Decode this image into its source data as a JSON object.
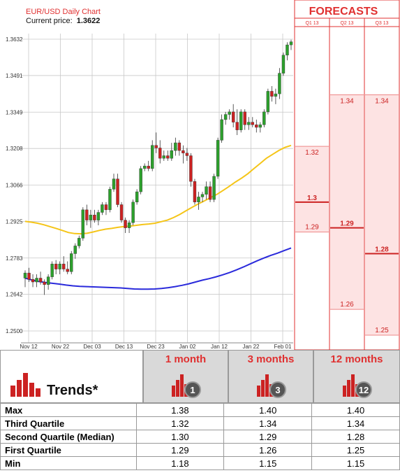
{
  "chart_title": "EUR/USD Daily Chart",
  "current_price_label": "Current price:",
  "current_price": "1.3622",
  "forecasts_title": "FORECASTS",
  "colors": {
    "candle_up": "#2ca02c",
    "candle_down": "#cc2222",
    "ma_short": "#f5c518",
    "ma_long": "#2a2adb",
    "accent": "#e03030"
  },
  "chart_data": [
    {
      "type": "candlestick",
      "title": "EUR/USD Daily Chart",
      "y_ticks": [
        1.25,
        1.2642,
        1.2783,
        1.2925,
        1.3066,
        1.3208,
        1.3349,
        1.3491,
        1.3632
      ],
      "y_tick_labels": [
        "1.2500",
        "1.2642",
        "1.2783",
        "1.2925",
        "1.3066",
        "1.3208",
        "1.3349",
        "1.3491",
        "1.3632"
      ],
      "ylim": [
        1.25,
        1.3632
      ],
      "x_tick_labels": [
        "Nov 12",
        "Nov 22",
        "Dec 03",
        "Dec 13",
        "Dec 23",
        "Jan 02",
        "Jan 12",
        "Jan 22",
        "Feb 01"
      ],
      "grid": true,
      "candles": [
        {
          "o": 1.2705,
          "h": 1.2735,
          "l": 1.267,
          "c": 1.2725
        },
        {
          "o": 1.2725,
          "h": 1.2745,
          "l": 1.269,
          "c": 1.27
        },
        {
          "o": 1.27,
          "h": 1.272,
          "l": 1.267,
          "c": 1.269
        },
        {
          "o": 1.269,
          "h": 1.272,
          "l": 1.267,
          "c": 1.2705
        },
        {
          "o": 1.2705,
          "h": 1.273,
          "l": 1.268,
          "c": 1.269
        },
        {
          "o": 1.269,
          "h": 1.27,
          "l": 1.264,
          "c": 1.268
        },
        {
          "o": 1.268,
          "h": 1.272,
          "l": 1.266,
          "c": 1.271
        },
        {
          "o": 1.271,
          "h": 1.277,
          "l": 1.27,
          "c": 1.276
        },
        {
          "o": 1.276,
          "h": 1.2775,
          "l": 1.272,
          "c": 1.274
        },
        {
          "o": 1.274,
          "h": 1.277,
          "l": 1.272,
          "c": 1.276
        },
        {
          "o": 1.276,
          "h": 1.279,
          "l": 1.273,
          "c": 1.274
        },
        {
          "o": 1.274,
          "h": 1.277,
          "l": 1.272,
          "c": 1.273
        },
        {
          "o": 1.273,
          "h": 1.281,
          "l": 1.272,
          "c": 1.28
        },
        {
          "o": 1.28,
          "h": 1.284,
          "l": 1.278,
          "c": 1.283
        },
        {
          "o": 1.283,
          "h": 1.287,
          "l": 1.282,
          "c": 1.286
        },
        {
          "o": 1.286,
          "h": 1.298,
          "l": 1.285,
          "c": 1.297
        },
        {
          "o": 1.297,
          "h": 1.299,
          "l": 1.291,
          "c": 1.293
        },
        {
          "o": 1.293,
          "h": 1.297,
          "l": 1.29,
          "c": 1.295
        },
        {
          "o": 1.295,
          "h": 1.297,
          "l": 1.292,
          "c": 1.293
        },
        {
          "o": 1.293,
          "h": 1.297,
          "l": 1.291,
          "c": 1.296
        },
        {
          "o": 1.296,
          "h": 1.3,
          "l": 1.295,
          "c": 1.299
        },
        {
          "o": 1.299,
          "h": 1.3,
          "l": 1.295,
          "c": 1.297
        },
        {
          "o": 1.297,
          "h": 1.306,
          "l": 1.296,
          "c": 1.305
        },
        {
          "o": 1.305,
          "h": 1.311,
          "l": 1.304,
          "c": 1.309
        },
        {
          "o": 1.309,
          "h": 1.311,
          "l": 1.298,
          "c": 1.299
        },
        {
          "o": 1.299,
          "h": 1.3,
          "l": 1.292,
          "c": 1.293
        },
        {
          "o": 1.293,
          "h": 1.294,
          "l": 1.288,
          "c": 1.29
        },
        {
          "o": 1.29,
          "h": 1.293,
          "l": 1.288,
          "c": 1.292
        },
        {
          "o": 1.292,
          "h": 1.301,
          "l": 1.291,
          "c": 1.3
        },
        {
          "o": 1.3,
          "h": 1.305,
          "l": 1.299,
          "c": 1.304
        },
        {
          "o": 1.304,
          "h": 1.314,
          "l": 1.303,
          "c": 1.313
        },
        {
          "o": 1.313,
          "h": 1.315,
          "l": 1.312,
          "c": 1.314
        },
        {
          "o": 1.314,
          "h": 1.316,
          "l": 1.312,
          "c": 1.313
        },
        {
          "o": 1.313,
          "h": 1.324,
          "l": 1.312,
          "c": 1.322
        },
        {
          "o": 1.322,
          "h": 1.327,
          "l": 1.319,
          "c": 1.321
        },
        {
          "o": 1.321,
          "h": 1.324,
          "l": 1.315,
          "c": 1.317
        },
        {
          "o": 1.317,
          "h": 1.32,
          "l": 1.316,
          "c": 1.318
        },
        {
          "o": 1.318,
          "h": 1.32,
          "l": 1.316,
          "c": 1.317
        },
        {
          "o": 1.317,
          "h": 1.323,
          "l": 1.316,
          "c": 1.32
        },
        {
          "o": 1.32,
          "h": 1.325,
          "l": 1.318,
          "c": 1.323
        },
        {
          "o": 1.323,
          "h": 1.324,
          "l": 1.318,
          "c": 1.32
        },
        {
          "o": 1.32,
          "h": 1.322,
          "l": 1.315,
          "c": 1.319
        },
        {
          "o": 1.319,
          "h": 1.321,
          "l": 1.316,
          "c": 1.318
        },
        {
          "o": 1.318,
          "h": 1.319,
          "l": 1.306,
          "c": 1.308
        },
        {
          "o": 1.308,
          "h": 1.309,
          "l": 1.299,
          "c": 1.3
        },
        {
          "o": 1.3,
          "h": 1.304,
          "l": 1.297,
          "c": 1.302
        },
        {
          "o": 1.302,
          "h": 1.304,
          "l": 1.3,
          "c": 1.303
        },
        {
          "o": 1.303,
          "h": 1.308,
          "l": 1.301,
          "c": 1.306
        },
        {
          "o": 1.306,
          "h": 1.308,
          "l": 1.3,
          "c": 1.301
        },
        {
          "o": 1.301,
          "h": 1.311,
          "l": 1.3,
          "c": 1.31
        },
        {
          "o": 1.31,
          "h": 1.325,
          "l": 1.309,
          "c": 1.324
        },
        {
          "o": 1.324,
          "h": 1.334,
          "l": 1.323,
          "c": 1.332
        },
        {
          "o": 1.332,
          "h": 1.335,
          "l": 1.33,
          "c": 1.334
        },
        {
          "o": 1.334,
          "h": 1.336,
          "l": 1.332,
          "c": 1.335
        },
        {
          "o": 1.335,
          "h": 1.338,
          "l": 1.329,
          "c": 1.331
        },
        {
          "o": 1.331,
          "h": 1.336,
          "l": 1.326,
          "c": 1.328
        },
        {
          "o": 1.328,
          "h": 1.336,
          "l": 1.327,
          "c": 1.335
        },
        {
          "o": 1.335,
          "h": 1.336,
          "l": 1.328,
          "c": 1.33
        },
        {
          "o": 1.33,
          "h": 1.333,
          "l": 1.328,
          "c": 1.331
        },
        {
          "o": 1.331,
          "h": 1.333,
          "l": 1.329,
          "c": 1.33
        },
        {
          "o": 1.33,
          "h": 1.332,
          "l": 1.327,
          "c": 1.329
        },
        {
          "o": 1.329,
          "h": 1.331,
          "l": 1.327,
          "c": 1.33
        },
        {
          "o": 1.33,
          "h": 1.336,
          "l": 1.329,
          "c": 1.335
        },
        {
          "o": 1.335,
          "h": 1.344,
          "l": 1.334,
          "c": 1.343
        },
        {
          "o": 1.343,
          "h": 1.345,
          "l": 1.339,
          "c": 1.341
        },
        {
          "o": 1.341,
          "h": 1.344,
          "l": 1.338,
          "c": 1.342
        },
        {
          "o": 1.342,
          "h": 1.352,
          "l": 1.34,
          "c": 1.35
        },
        {
          "o": 1.35,
          "h": 1.358,
          "l": 1.349,
          "c": 1.357
        },
        {
          "o": 1.357,
          "h": 1.362,
          "l": 1.355,
          "c": 1.361
        },
        {
          "o": 1.361,
          "h": 1.363,
          "l": 1.359,
          "c": 1.3622
        }
      ],
      "ma_short": [
        1.2925,
        1.2922,
        1.2918,
        1.2912,
        1.2905,
        1.2898,
        1.289,
        1.2882,
        1.2878,
        1.2877,
        1.2879,
        1.2884,
        1.289,
        1.2895,
        1.2898,
        1.2902,
        1.2905,
        1.2907,
        1.291,
        1.2913,
        1.2915,
        1.2918,
        1.2924,
        1.293,
        1.294,
        1.2952,
        1.2966,
        1.298,
        1.2993,
        1.3005,
        1.3018,
        1.303,
        1.3045,
        1.3061,
        1.3078,
        1.3093,
        1.311,
        1.313,
        1.315,
        1.317,
        1.3185,
        1.32,
        1.3212,
        1.322
      ],
      "ma_long": [
        1.2705,
        1.2698,
        1.2692,
        1.2688,
        1.2685,
        1.2682,
        1.2678,
        1.2675,
        1.2673,
        1.2672,
        1.2671,
        1.267,
        1.2669,
        1.2668,
        1.2667,
        1.2665,
        1.2663,
        1.2662,
        1.2662,
        1.2663,
        1.2665,
        1.2668,
        1.2672,
        1.2677,
        1.2683,
        1.269,
        1.2697,
        1.2703,
        1.271,
        1.2718,
        1.2727,
        1.2737,
        1.2748,
        1.276,
        1.2772,
        1.2783,
        1.2793,
        1.2802,
        1.2812,
        1.2822
      ],
      "forecast_columns": [
        {
          "label": "Q1 13",
          "third_quartile": "1.32",
          "median": "1.3",
          "first_quartile": "1.29"
        },
        {
          "label": "Q2 13",
          "third_quartile": "1.34",
          "median": "1.29",
          "first_quartile": "1.26"
        },
        {
          "label": "Q3 13",
          "third_quartile": "1.34",
          "median": "1.28",
          "first_quartile": "1.25"
        }
      ]
    },
    {
      "type": "table",
      "title": "Trends*",
      "columns": [
        "1 month",
        "3 months",
        "12 months"
      ],
      "column_icons": [
        "1",
        "3",
        "12"
      ],
      "rows": [
        {
          "label": "Max",
          "values": [
            "1.38",
            "1.40",
            "1.40"
          ]
        },
        {
          "label": "Third Quartile",
          "values": [
            "1.32",
            "1.34",
            "1.34"
          ]
        },
        {
          "label": "Second Quartile (Median)",
          "values": [
            "1.30",
            "1.29",
            "1.28"
          ]
        },
        {
          "label": "First Quartile",
          "values": [
            "1.29",
            "1.26",
            "1.25"
          ]
        },
        {
          "label": "Min",
          "values": [
            "1.18",
            "1.15",
            "1.15"
          ]
        }
      ]
    }
  ]
}
